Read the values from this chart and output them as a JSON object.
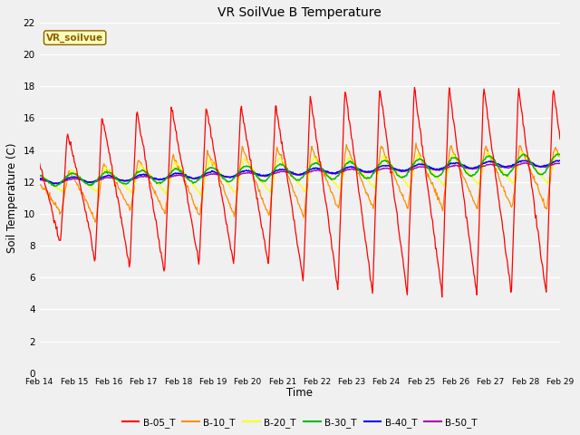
{
  "title": "VR SoilVue B Temperature",
  "xlabel": "Time",
  "ylabel": "Soil Temperature (C)",
  "ylim": [
    0,
    22
  ],
  "yticks": [
    0,
    2,
    4,
    6,
    8,
    10,
    12,
    14,
    16,
    18,
    20,
    22
  ],
  "x_labels": [
    "Feb 14",
    "Feb 15",
    "Feb 16",
    "Feb 17",
    "Feb 18",
    "Feb 19",
    "Feb 20",
    "Feb 21",
    "Feb 22",
    "Feb 23",
    "Feb 24",
    "Feb 25",
    "Feb 26",
    "Feb 27",
    "Feb 28",
    "Feb 29"
  ],
  "series_colors": {
    "B-05_T": "#ff0000",
    "B-10_T": "#ff8c00",
    "B-20_T": "#ffff00",
    "B-30_T": "#00bb00",
    "B-40_T": "#0000ff",
    "B-50_T": "#aa00aa"
  },
  "legend_label": "VR_soilvue",
  "bg_color": "#f0f0f0",
  "plot_bg_color": "#f0f0f0",
  "grid_color": "#ffffff",
  "figsize": [
    6.4,
    4.8
  ],
  "dpi": 100
}
